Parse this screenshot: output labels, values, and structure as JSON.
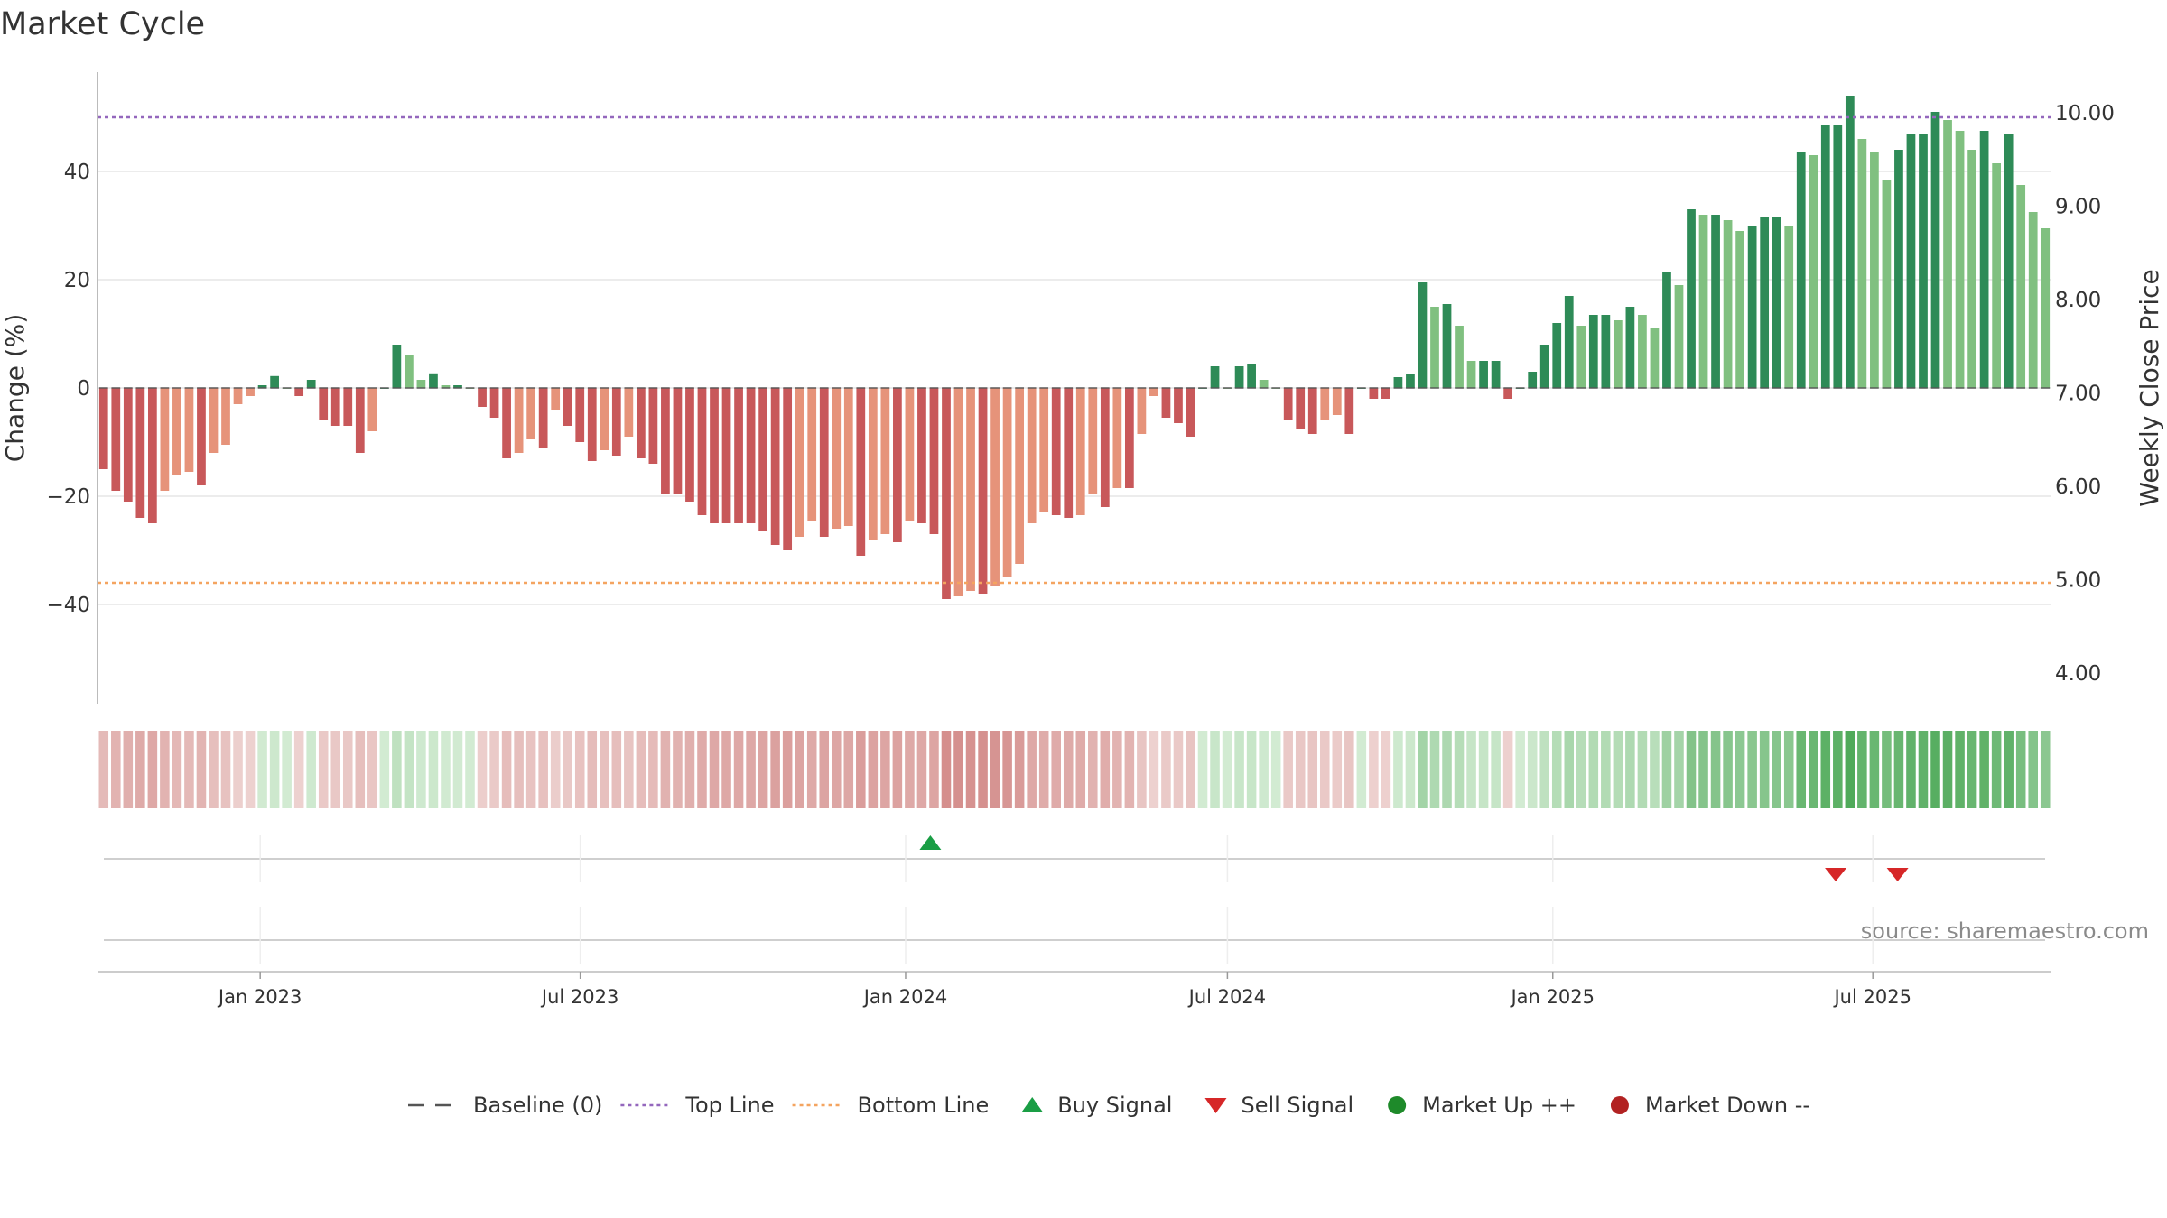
{
  "chart_data": {
    "type": "bar",
    "title": "Market Cycle",
    "ylabel": "Change (%)",
    "ylabel_right": "Weekly Close Price",
    "ylim": [
      -58,
      58
    ],
    "yticks": [
      -40,
      -20,
      0,
      20,
      40
    ],
    "yticklabels": [
      "−40",
      "−20",
      "0",
      "20",
      "40"
    ],
    "right_ticks": [
      "10.00",
      "9.00",
      "8.00",
      "7.00",
      "6.00",
      "5.00",
      "4.00"
    ],
    "top_line": 50,
    "bottom_line": -36,
    "x_start": "2022-10-01",
    "x_end": "2025-10-10",
    "x_tick_dates": [
      "2023-01-01",
      "2023-07-01",
      "2024-01-01",
      "2024-07-01",
      "2025-01-01",
      "2025-07-01"
    ],
    "x_tick_labels": [
      "Jan 2023",
      "Jul 2023",
      "Jan 2024",
      "Jul 2024",
      "Jan 2025",
      "Jul 2025"
    ],
    "values": [
      -15,
      -19,
      -21,
      -24,
      -25,
      -19,
      -16,
      -15.5,
      -18,
      -12,
      -10.5,
      -3,
      -1.5,
      0.5,
      2.2,
      0,
      -1.5,
      1.5,
      -6,
      -7,
      -7,
      -12,
      -8,
      0,
      8,
      6,
      1.5,
      2.7,
      0.5,
      0.5,
      0,
      -3.5,
      -5.5,
      -13,
      -12,
      -9.5,
      -11,
      -4,
      -7,
      -10,
      -13.5,
      -11.5,
      -12.5,
      -9,
      -13,
      -14,
      -19.5,
      -19.5,
      -21,
      -23.5,
      -25,
      -25,
      -25,
      -25,
      -26.5,
      -29,
      -30,
      -27.5,
      -24.5,
      -27.5,
      -26,
      -25.5,
      -31,
      -28,
      -27,
      -28.5,
      -24.5,
      -25,
      -27,
      -39,
      -38.5,
      -37.5,
      -38,
      -36.5,
      -35,
      -32.5,
      -25,
      -23,
      -23.5,
      -24,
      -23.5,
      -19.5,
      -22,
      -18.5,
      -18.5,
      -8.5,
      -1.5,
      -5.5,
      -6.5,
      -9,
      0,
      4,
      0,
      4,
      4.5,
      1.5,
      0,
      -6,
      -7.5,
      -8.5,
      -6,
      -5,
      -8.5,
      0,
      -2,
      -2,
      2,
      2.5,
      19.5,
      15,
      15.5,
      11.5,
      5,
      5,
      5,
      -2,
      0,
      3,
      8,
      12,
      17,
      11.5,
      13.5,
      13.5,
      12.5,
      15,
      13.5,
      11,
      21.5,
      19,
      33,
      32,
      32,
      31,
      29,
      30,
      31.5,
      31.5,
      30,
      43.5,
      43,
      48.5,
      48.5,
      54,
      46,
      43.5,
      38.5,
      44,
      47,
      47,
      51,
      49.5,
      47.5,
      44,
      47.5,
      41.5,
      47,
      37.5,
      32.5,
      29.5
    ],
    "colors": {
      "dark_red": "#c8585a",
      "salmon": "#e6937a",
      "dark_green": "#2e8b57",
      "light_green": "#80c080",
      "top_line": "#9467bd",
      "bottom_line": "#f4a460",
      "baseline": "#555555",
      "buy": "#1a9e45",
      "sell": "#d62728",
      "market_up": "#1e8a2a",
      "market_down": "#b22222"
    },
    "signals": {
      "buy": [
        "2024-01-15"
      ],
      "sell": [
        "2025-06-10",
        "2025-07-15"
      ]
    },
    "legend": [
      {
        "label": "Baseline (0)",
        "kind": "dash",
        "color": "#555555"
      },
      {
        "label": "Top Line",
        "kind": "dot",
        "color": "#9467bd"
      },
      {
        "label": "Bottom Line",
        "kind": "dot",
        "color": "#f4a460"
      },
      {
        "label": "Buy Signal",
        "kind": "tri-up",
        "color": "#1a9e45"
      },
      {
        "label": "Sell Signal",
        "kind": "tri-down",
        "color": "#d62728"
      },
      {
        "label": "Market Up ++",
        "kind": "circle",
        "color": "#1e8a2a"
      },
      {
        "label": "Market Down --",
        "kind": "circle",
        "color": "#b22222"
      }
    ],
    "legend_placement": "bottom-center",
    "grid": true
  },
  "source": "source: sharemaestro.com"
}
